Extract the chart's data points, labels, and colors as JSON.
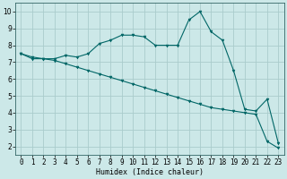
{
  "xlabel": "Humidex (Indice chaleur)",
  "background_color": "#cce8e8",
  "grid_color": "#aacccc",
  "line_color": "#006666",
  "spine_color": "#336666",
  "xlim": [
    -0.5,
    23.5
  ],
  "ylim": [
    1.5,
    10.5
  ],
  "xticks": [
    0,
    1,
    2,
    3,
    4,
    5,
    6,
    7,
    8,
    9,
    10,
    11,
    12,
    13,
    14,
    15,
    16,
    17,
    18,
    19,
    20,
    21,
    22,
    23
  ],
  "yticks": [
    2,
    3,
    4,
    5,
    6,
    7,
    8,
    9,
    10
  ],
  "curve1_x": [
    0,
    1,
    2,
    3,
    4,
    5,
    6,
    7,
    8,
    9,
    10,
    11,
    12,
    13,
    14,
    15,
    16,
    17,
    18,
    19,
    20,
    21,
    22,
    23
  ],
  "curve1_y": [
    7.5,
    7.2,
    7.2,
    7.2,
    7.4,
    7.3,
    7.5,
    8.1,
    8.3,
    8.6,
    8.6,
    8.5,
    8.0,
    8.0,
    8.0,
    9.5,
    10.0,
    8.8,
    8.3,
    6.5,
    4.2,
    4.1,
    4.8,
    2.2
  ],
  "curve2_x": [
    0,
    1,
    2,
    3,
    4,
    5,
    6,
    7,
    8,
    9,
    10,
    11,
    12,
    13,
    14,
    15,
    16,
    17,
    18,
    19,
    20,
    21,
    22,
    23
  ],
  "curve2_y": [
    7.5,
    7.3,
    7.2,
    7.1,
    6.9,
    6.7,
    6.5,
    6.3,
    6.1,
    5.9,
    5.7,
    5.5,
    5.3,
    5.1,
    4.9,
    4.7,
    4.5,
    4.3,
    4.2,
    4.1,
    4.0,
    3.9,
    2.3,
    1.9
  ],
  "tick_fontsize": 5.5,
  "xlabel_fontsize": 6.0,
  "marker_size": 2.0,
  "line_width": 0.8
}
